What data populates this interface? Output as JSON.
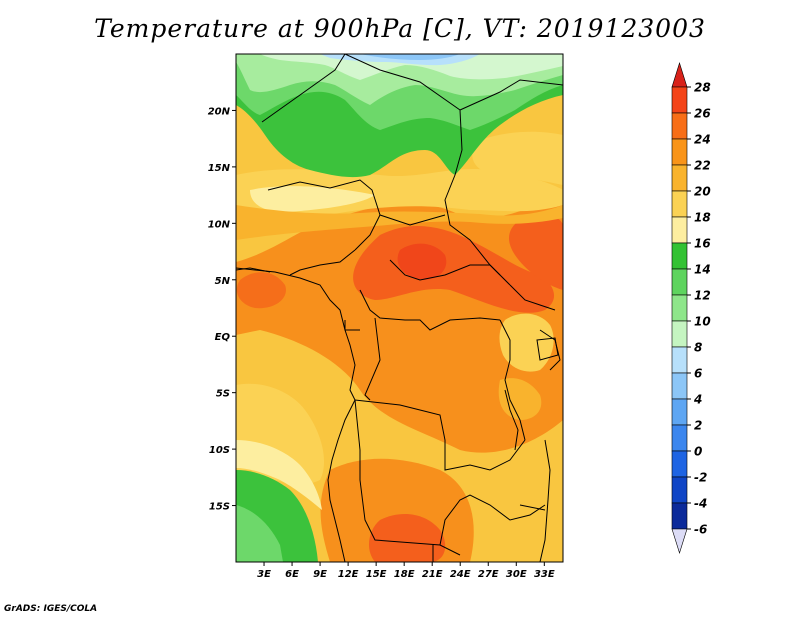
{
  "title": "Temperature at 900hPa [C], VT: 2019123003",
  "credit": "GrADS: IGES/COLA",
  "map": {
    "variable": "Temperature at 900hPa",
    "units": "C",
    "valid_time": "2019123003",
    "lon_range": [
      0,
      35
    ],
    "lat_range": [
      -20,
      25
    ],
    "lat_ticks": [
      {
        "value": 20,
        "label": "20N"
      },
      {
        "value": 15,
        "label": "15N"
      },
      {
        "value": 10,
        "label": "10N"
      },
      {
        "value": 5,
        "label": "5N"
      },
      {
        "value": 0,
        "label": "EQ"
      },
      {
        "value": -5,
        "label": "5S"
      },
      {
        "value": -10,
        "label": "10S"
      },
      {
        "value": -15,
        "label": "15S"
      }
    ],
    "lon_ticks": [
      {
        "value": 3,
        "label": "3E"
      },
      {
        "value": 6,
        "label": "6E"
      },
      {
        "value": 9,
        "label": "9E"
      },
      {
        "value": 12,
        "label": "12E"
      },
      {
        "value": 15,
        "label": "15E"
      },
      {
        "value": 18,
        "label": "18E"
      },
      {
        "value": 21,
        "label": "21E"
      },
      {
        "value": 24,
        "label": "24E"
      },
      {
        "value": 27,
        "label": "27E"
      },
      {
        "value": 30,
        "label": "30E"
      },
      {
        "value": 33,
        "label": "33E"
      }
    ],
    "background_color": "#f9c640"
  },
  "colorbar": {
    "levels": [
      {
        "label": "28",
        "color": "#e8281c"
      },
      {
        "label": "26",
        "color": "#f44418"
      },
      {
        "label": "24",
        "color": "#f86e17"
      },
      {
        "label": "22",
        "color": "#f99419"
      },
      {
        "label": "20",
        "color": "#f9b32d"
      },
      {
        "label": "18",
        "color": "#fbd254"
      },
      {
        "label": "16",
        "color": "#fdeea0"
      },
      {
        "label": "14",
        "color": "#33c233"
      },
      {
        "label": "12",
        "color": "#5ed45e"
      },
      {
        "label": "10",
        "color": "#8ee68a"
      },
      {
        "label": "8",
        "color": "#c5f5c1"
      },
      {
        "label": "6",
        "color": "#b7e0fb"
      },
      {
        "label": "4",
        "color": "#8cc6f7"
      },
      {
        "label": "2",
        "color": "#5ea6f3"
      },
      {
        "label": "0",
        "color": "#3b86ee"
      },
      {
        "label": "-2",
        "color": "#1e64e3"
      },
      {
        "label": "-4",
        "color": "#0f45c6"
      },
      {
        "label": "-6",
        "color": "#0b2a9a"
      }
    ],
    "top_arrow_color": "#d8221a",
    "bottom_arrow_color": "#dcdcf6",
    "bottom_last_color": "#10116e"
  }
}
